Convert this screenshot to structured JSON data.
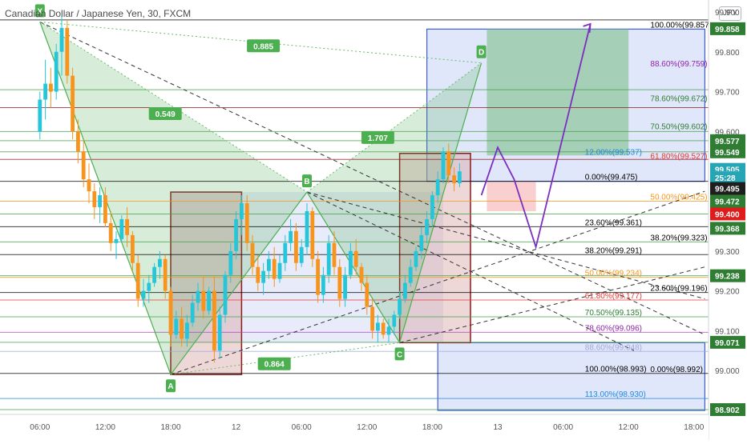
{
  "header": {
    "symbol_title": "Canadian Dollar / Japanese Yen, 30, FXCM",
    "currency_badge": "JPY"
  },
  "colors": {
    "up_candle": "#26c6da",
    "down_candle": "#f7941d",
    "pattern_fill": "#4caf50",
    "box_blue": "#3f5fd1",
    "box_red": "#8b1a1a",
    "target_green": "#2e7d32",
    "path_purple": "#7b2fbe"
  },
  "chart_data": {
    "type": "candlestick",
    "title": "Canadian Dollar / Japanese Yen, 30, FXCM",
    "ylim": [
      98.89,
      99.93
    ],
    "y_ticks": [
      99.0,
      99.1,
      99.2,
      99.3,
      99.4,
      99.5,
      99.6,
      99.7,
      99.8,
      99.9
    ],
    "y_tick_labels": [
      "99.000",
      "99.100",
      "99.200",
      "99.300",
      "99.400",
      "99.500",
      "99.600",
      "99.700",
      "99.800",
      "99.900"
    ],
    "x_tick_labels": [
      {
        "t": 1,
        "label": "06:00"
      },
      {
        "t": 13,
        "label": "12:00"
      },
      {
        "t": 25,
        "label": "18:00"
      },
      {
        "t": 37,
        "label": "12"
      },
      {
        "t": 49,
        "label": "06:00"
      },
      {
        "t": 61,
        "label": "12:00"
      },
      {
        "t": 73,
        "label": "18:00"
      },
      {
        "t": 85,
        "label": "13"
      },
      {
        "t": 97,
        "label": "06:00"
      },
      {
        "t": 109,
        "label": "12:00"
      },
      {
        "t": 121,
        "label": "18:00"
      }
    ],
    "candles": [
      [
        99.6,
        99.7,
        99.58,
        99.68
      ],
      [
        99.68,
        99.78,
        99.63,
        99.72
      ],
      [
        99.72,
        99.76,
        99.66,
        99.7
      ],
      [
        99.7,
        99.82,
        99.68,
        99.8
      ],
      [
        99.8,
        99.89,
        99.74,
        99.86
      ],
      [
        99.86,
        99.88,
        99.72,
        99.74
      ],
      [
        99.74,
        99.76,
        99.58,
        99.6
      ],
      [
        99.6,
        99.63,
        99.52,
        99.55
      ],
      [
        99.55,
        99.58,
        99.46,
        99.48
      ],
      [
        99.48,
        99.52,
        99.42,
        99.45
      ],
      [
        99.45,
        99.47,
        99.38,
        99.41
      ],
      [
        99.41,
        99.46,
        99.37,
        99.44
      ],
      [
        99.44,
        99.46,
        99.36,
        99.37
      ],
      [
        99.37,
        99.4,
        99.3,
        99.32
      ],
      [
        99.32,
        99.35,
        99.28,
        99.33
      ],
      [
        99.33,
        99.39,
        99.32,
        99.38
      ],
      [
        99.38,
        99.41,
        99.31,
        99.34
      ],
      [
        99.34,
        99.35,
        99.25,
        99.27
      ],
      [
        99.27,
        99.29,
        99.16,
        99.18
      ],
      [
        99.18,
        99.23,
        99.16,
        99.2
      ],
      [
        99.2,
        99.24,
        99.17,
        99.22
      ],
      [
        99.22,
        99.27,
        99.21,
        99.26
      ],
      [
        99.26,
        99.3,
        99.23,
        99.28
      ],
      [
        99.28,
        99.29,
        99.18,
        99.2
      ],
      [
        99.2,
        99.21,
        99.06,
        99.09
      ],
      [
        99.09,
        99.15,
        99.08,
        99.13
      ],
      [
        99.13,
        99.16,
        99.06,
        99.08
      ],
      [
        99.08,
        99.14,
        99.06,
        99.12
      ],
      [
        99.12,
        99.19,
        99.11,
        99.17
      ],
      [
        99.17,
        99.22,
        99.15,
        99.2
      ],
      [
        99.2,
        99.24,
        99.13,
        99.15
      ],
      [
        99.15,
        99.21,
        99.14,
        99.2
      ],
      [
        99.2,
        99.24,
        99.02,
        99.05
      ],
      [
        99.05,
        99.16,
        99.03,
        99.14
      ],
      [
        99.14,
        99.25,
        99.12,
        99.24
      ],
      [
        99.24,
        99.32,
        99.22,
        99.3
      ],
      [
        99.3,
        99.4,
        99.28,
        99.38
      ],
      [
        99.38,
        99.44,
        99.34,
        99.42
      ],
      [
        99.42,
        99.44,
        99.3,
        99.32
      ],
      [
        99.32,
        99.34,
        99.24,
        99.26
      ],
      [
        99.26,
        99.29,
        99.2,
        99.22
      ],
      [
        99.22,
        99.27,
        99.19,
        99.25
      ],
      [
        99.25,
        99.3,
        99.23,
        99.28
      ],
      [
        99.28,
        99.31,
        99.21,
        99.23
      ],
      [
        99.23,
        99.29,
        99.22,
        99.27
      ],
      [
        99.27,
        99.34,
        99.25,
        99.32
      ],
      [
        99.32,
        99.38,
        99.3,
        99.35
      ],
      [
        99.35,
        99.37,
        99.25,
        99.27
      ],
      [
        99.27,
        99.33,
        99.26,
        99.31
      ],
      [
        99.31,
        99.42,
        99.29,
        99.4
      ],
      [
        99.4,
        99.41,
        99.26,
        99.28
      ],
      [
        99.28,
        99.3,
        99.17,
        99.19
      ],
      [
        99.19,
        99.26,
        99.17,
        99.24
      ],
      [
        99.24,
        99.34,
        99.22,
        99.32
      ],
      [
        99.32,
        99.35,
        99.24,
        99.26
      ],
      [
        99.26,
        99.28,
        99.16,
        99.18
      ],
      [
        99.18,
        99.26,
        99.16,
        99.24
      ],
      [
        99.24,
        99.32,
        99.23,
        99.3
      ],
      [
        99.3,
        99.33,
        99.24,
        99.26
      ],
      [
        99.26,
        99.27,
        99.2,
        99.22
      ],
      [
        99.22,
        99.24,
        99.14,
        99.16
      ],
      [
        99.16,
        99.18,
        99.08,
        99.1
      ],
      [
        99.1,
        99.14,
        99.07,
        99.12
      ],
      [
        99.12,
        99.13,
        99.08,
        99.09
      ],
      [
        99.09,
        99.13,
        99.07,
        99.11
      ],
      [
        99.11,
        99.15,
        99.09,
        99.14
      ],
      [
        99.14,
        99.2,
        99.13,
        99.18
      ],
      [
        99.18,
        99.24,
        99.17,
        99.22
      ],
      [
        99.22,
        99.28,
        99.21,
        99.26
      ],
      [
        99.26,
        99.31,
        99.25,
        99.3
      ],
      [
        99.3,
        99.36,
        99.28,
        99.34
      ],
      [
        99.34,
        99.4,
        99.32,
        99.38
      ],
      [
        99.38,
        99.45,
        99.36,
        99.44
      ],
      [
        99.44,
        99.5,
        99.42,
        99.48
      ],
      [
        99.48,
        99.56,
        99.47,
        99.55
      ],
      [
        99.55,
        99.57,
        99.47,
        99.49
      ],
      [
        99.49,
        99.51,
        99.45,
        99.47
      ],
      [
        99.47,
        99.52,
        99.46,
        99.5
      ]
    ],
    "xabcd_pattern": {
      "points": [
        {
          "label": "X",
          "t": 1,
          "price": 99.875
        },
        {
          "label": "A",
          "t": 25,
          "price": 98.99
        },
        {
          "label": "B",
          "t": 50,
          "price": 99.448
        },
        {
          "label": "C",
          "t": 67,
          "price": 99.07
        },
        {
          "label": "D",
          "t": 82,
          "price": 99.772
        }
      ],
      "ratios": [
        {
          "label": "0.885",
          "t": 42,
          "price": 99.815
        },
        {
          "label": "0.549",
          "t": 24,
          "price": 99.645
        },
        {
          "label": "1.707",
          "t": 63,
          "price": 99.585
        },
        {
          "label": "0.864",
          "t": 44,
          "price": 99.017
        }
      ]
    },
    "fib_left": [
      {
        "label": "23.60%(99.361)",
        "price": 99.361
      },
      {
        "label": "38.20%(99.291)",
        "price": 99.291
      },
      {
        "label": "50.00%(99.234)",
        "price": 99.234
      },
      {
        "label": "61.80%(99.177)",
        "price": 99.177
      },
      {
        "label": "70.50%(99.135)",
        "price": 99.135
      },
      {
        "label": "78.60%(99.096)",
        "price": 99.096
      },
      {
        "label": "88.60%(99.048)",
        "price": 99.048
      },
      {
        "label": "100.00%(98.993)",
        "price": 98.993
      },
      {
        "label": "113.00%(98.930)",
        "price": 98.93
      }
    ],
    "fib_right": [
      {
        "label": "100.00%(99.857)",
        "price": 99.857
      },
      {
        "label": "88.60%(99.759)",
        "price": 99.759
      },
      {
        "label": "78.60%(99.672)",
        "price": 99.672
      },
      {
        "label": "70.50%(99.602)",
        "price": 99.602
      },
      {
        "label": "61.80%(99.527)",
        "price": 99.527
      },
      {
        "label": "50.00%(99.425)",
        "price": 99.425
      },
      {
        "label": "38.20%(99.323)",
        "price": 99.323
      },
      {
        "label": "23.60%(99.196)",
        "price": 99.196
      },
      {
        "label": "0.00%(98.992)",
        "price": 98.992
      }
    ],
    "fib_mini": [
      {
        "label": "12.00%(99.537)",
        "price": 99.537
      },
      {
        "label": "0.00%(99.475)",
        "price": 99.475
      }
    ],
    "price_tags": [
      {
        "label": "99.858",
        "price": 99.858,
        "color": "#2e7d32"
      },
      {
        "label": "99.577",
        "price": 99.577,
        "color": "#2e7d32"
      },
      {
        "label": "99.549",
        "price": 99.549,
        "color": "#2e7d32"
      },
      {
        "label": "99.505",
        "price": 99.505,
        "color": "#26a6b5"
      },
      {
        "label": "25:28",
        "price": 99.484,
        "color": "#26a6b5"
      },
      {
        "label": "99.495",
        "price": 99.457,
        "color": "#1e1e1e"
      },
      {
        "label": "99.472",
        "price": 99.425,
        "color": "#2e7d32"
      },
      {
        "label": "99.400",
        "price": 99.393,
        "color": "#e01b1b"
      },
      {
        "label": "99.368",
        "price": 99.357,
        "color": "#2e7d32"
      },
      {
        "label": "99.238",
        "price": 99.238,
        "color": "#2e7d32"
      },
      {
        "label": "99.071",
        "price": 99.071,
        "color": "#2e7d32"
      },
      {
        "label": "98.902",
        "price": 98.902,
        "color": "#2e7d32"
      }
    ],
    "grid": false
  }
}
